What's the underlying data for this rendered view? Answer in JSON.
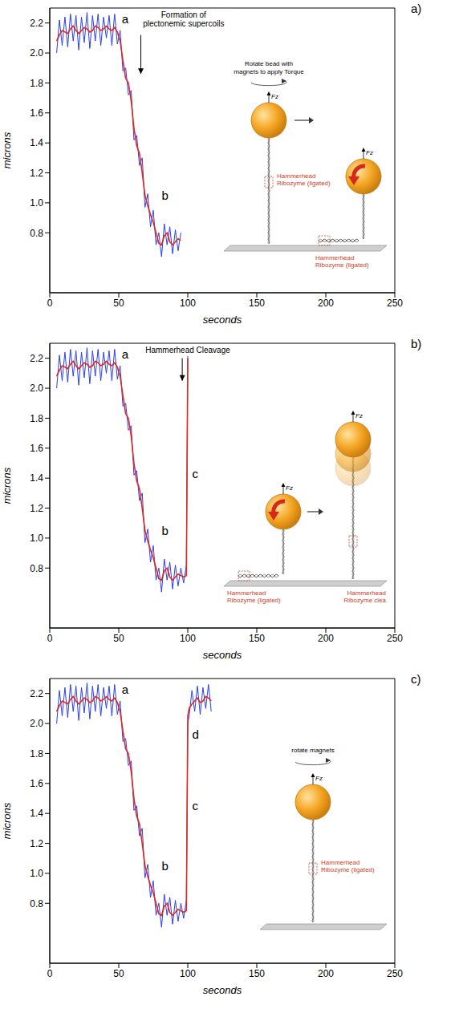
{
  "chart_data": [
    {
      "type": "line",
      "label": "a)",
      "x_label": "seconds",
      "y_label": "microns",
      "xlim": [
        0,
        250
      ],
      "xticks": [
        0,
        50,
        100,
        150,
        200,
        250
      ],
      "ylim": [
        0.4,
        2.3
      ],
      "yticks": [
        0.8,
        {
          "value": 1,
          "label": "1.0"
        },
        1.2,
        1.4,
        1.6,
        1.8,
        {
          "value": 2,
          "label": "2.0"
        },
        2.2
      ],
      "x": [
        5,
        7,
        9,
        11,
        13,
        15,
        17,
        19,
        21,
        23,
        25,
        27,
        29,
        31,
        33,
        35,
        37,
        39,
        41,
        43,
        45,
        47,
        49,
        51,
        53,
        55,
        57,
        59,
        61,
        63,
        65,
        67,
        69,
        71,
        73,
        75,
        77,
        79,
        81,
        83,
        85,
        87,
        89,
        91,
        93,
        95
      ],
      "series": [
        {
          "color": "#2a3ff0",
          "values": [
            2.0,
            2.22,
            2.05,
            2.24,
            2.04,
            2.26,
            2.08,
            2.25,
            2.02,
            2.24,
            2.07,
            2.27,
            2.03,
            2.25,
            2.08,
            2.26,
            2.05,
            2.24,
            2.1,
            2.25,
            2.05,
            2.26,
            2.06,
            2.15,
            1.88,
            1.9,
            1.72,
            1.75,
            1.42,
            1.45,
            1.25,
            1.3,
            0.97,
            1.06,
            0.84,
            0.95,
            0.72,
            0.8,
            0.64,
            0.86,
            0.72,
            0.84,
            0.66,
            0.82,
            0.68,
            0.8
          ]
        },
        {
          "color": "#e0281e",
          "values": [
            2.08,
            2.12,
            2.15,
            2.14,
            2.13,
            2.16,
            2.18,
            2.15,
            2.13,
            2.15,
            2.17,
            2.16,
            2.14,
            2.15,
            2.18,
            2.17,
            2.15,
            2.16,
            2.18,
            2.16,
            2.15,
            2.17,
            2.14,
            2.08,
            1.95,
            1.83,
            1.8,
            1.68,
            1.5,
            1.38,
            1.33,
            1.2,
            1.05,
            0.98,
            0.92,
            0.87,
            0.8,
            0.73,
            0.72,
            0.78,
            0.8,
            0.74,
            0.72,
            0.74,
            0.76,
            0.75
          ]
        }
      ],
      "annotations": [
        {
          "text": "a",
          "x": 51,
          "y": 2.2
        },
        {
          "text": "b",
          "x": 80,
          "y": 1.02
        },
        {
          "text": "Formation of plectonemic supercoils",
          "x": 97,
          "y": 2.295,
          "arrow": [
            [
              66,
              2.12
            ],
            [
              66,
              1.86
            ]
          ]
        }
      ],
      "inset": {
        "caption": "Rotate bead with magnets to apply Torque",
        "force_labels": [
          "Fz",
          "Fz"
        ],
        "ribozyme_labels": [
          "Hammerhead Ribozyme (ligated)",
          "Hammerhead Ribozyme (ligated)"
        ]
      }
    },
    {
      "type": "line",
      "label": "b)",
      "x_label": "seconds",
      "y_label": "microns",
      "xlim": [
        0,
        250
      ],
      "xticks": [
        0,
        50,
        100,
        150,
        200,
        250
      ],
      "ylim": [
        0.4,
        2.3
      ],
      "yticks": [
        0.8,
        {
          "value": 1,
          "label": "1.0"
        },
        1.2,
        1.4,
        1.6,
        1.8,
        {
          "value": 2,
          "label": "2.0"
        },
        2.2
      ],
      "x": [
        5,
        7,
        9,
        11,
        13,
        15,
        17,
        19,
        21,
        23,
        25,
        27,
        29,
        31,
        33,
        35,
        37,
        39,
        41,
        43,
        45,
        47,
        49,
        51,
        53,
        55,
        57,
        59,
        61,
        63,
        65,
        67,
        69,
        71,
        73,
        75,
        77,
        79,
        81,
        83,
        85,
        87,
        89,
        91,
        93,
        95,
        97,
        99,
        100
      ],
      "series": [
        {
          "color": "#2a3ff0",
          "values": [
            2.0,
            2.22,
            2.05,
            2.24,
            2.04,
            2.26,
            2.08,
            2.25,
            2.02,
            2.24,
            2.07,
            2.27,
            2.03,
            2.25,
            2.08,
            2.26,
            2.05,
            2.24,
            2.1,
            2.25,
            2.05,
            2.26,
            2.06,
            2.15,
            1.88,
            1.9,
            1.72,
            1.75,
            1.42,
            1.45,
            1.25,
            1.3,
            0.97,
            1.06,
            0.84,
            0.95,
            0.72,
            0.8,
            0.64,
            0.86,
            0.72,
            0.84,
            0.66,
            0.82,
            0.68,
            0.8,
            0.7,
            0.82,
            2.25
          ]
        },
        {
          "color": "#e0281e",
          "values": [
            2.08,
            2.12,
            2.15,
            2.14,
            2.13,
            2.16,
            2.18,
            2.15,
            2.13,
            2.15,
            2.17,
            2.16,
            2.14,
            2.15,
            2.18,
            2.17,
            2.15,
            2.16,
            2.18,
            2.16,
            2.15,
            2.17,
            2.14,
            2.08,
            1.95,
            1.83,
            1.8,
            1.68,
            1.5,
            1.38,
            1.33,
            1.2,
            1.05,
            0.98,
            0.92,
            0.87,
            0.8,
            0.73,
            0.72,
            0.78,
            0.8,
            0.74,
            0.72,
            0.74,
            0.76,
            0.75,
            0.74,
            0.75,
            2.2
          ]
        }
      ],
      "annotations": [
        {
          "text": "a",
          "x": 51,
          "y": 2.2
        },
        {
          "text": "b",
          "x": 80,
          "y": 1.02
        },
        {
          "text": "c",
          "x": 102,
          "y": 1.4
        },
        {
          "text": "Hammerhead Cleavage",
          "x": 100,
          "y": 2.295,
          "arrow": [
            [
              96,
              2.2
            ],
            [
              96,
              2.05
            ]
          ]
        }
      ],
      "inset": {
        "force_labels": [
          "Fz",
          "Fz"
        ],
        "ribozyme_labels": [
          "Hammerhead Ribozyme (ligated)",
          "Hammerhead Ribozyme clea"
        ]
      }
    },
    {
      "type": "line",
      "label": "c)",
      "x_label": "seconds",
      "y_label": "microns",
      "xlim": [
        0,
        250
      ],
      "xticks": [
        0,
        50,
        100,
        150,
        200,
        250
      ],
      "ylim": [
        0.4,
        2.3
      ],
      "yticks": [
        0.8,
        {
          "value": 1,
          "label": "1.0"
        },
        1.2,
        1.4,
        1.6,
        1.8,
        {
          "value": 2,
          "label": "2.0"
        },
        2.2
      ],
      "x": [
        5,
        7,
        9,
        11,
        13,
        15,
        17,
        19,
        21,
        23,
        25,
        27,
        29,
        31,
        33,
        35,
        37,
        39,
        41,
        43,
        45,
        47,
        49,
        51,
        53,
        55,
        57,
        59,
        61,
        63,
        65,
        67,
        69,
        71,
        73,
        75,
        77,
        79,
        81,
        83,
        85,
        87,
        89,
        91,
        93,
        95,
        97,
        99,
        100,
        101,
        103,
        105,
        107,
        109,
        111,
        113,
        115,
        117
      ],
      "series": [
        {
          "color": "#2a3ff0",
          "values": [
            2.0,
            2.22,
            2.05,
            2.24,
            2.04,
            2.26,
            2.08,
            2.25,
            2.02,
            2.24,
            2.07,
            2.27,
            2.03,
            2.25,
            2.08,
            2.26,
            2.05,
            2.24,
            2.1,
            2.25,
            2.05,
            2.26,
            2.06,
            2.15,
            1.88,
            1.9,
            1.72,
            1.75,
            1.42,
            1.45,
            1.25,
            1.3,
            0.97,
            1.06,
            0.84,
            0.95,
            0.72,
            0.8,
            0.64,
            0.86,
            0.72,
            0.84,
            0.66,
            0.82,
            0.68,
            0.8,
            0.7,
            0.82,
            2.0,
            2.05,
            2.22,
            2.08,
            2.25,
            2.06,
            2.24,
            2.1,
            2.26,
            2.08
          ]
        },
        {
          "color": "#e0281e",
          "values": [
            2.08,
            2.12,
            2.15,
            2.14,
            2.13,
            2.16,
            2.18,
            2.15,
            2.13,
            2.15,
            2.17,
            2.16,
            2.14,
            2.15,
            2.18,
            2.17,
            2.15,
            2.16,
            2.18,
            2.16,
            2.15,
            2.17,
            2.14,
            2.08,
            1.95,
            1.83,
            1.8,
            1.68,
            1.5,
            1.38,
            1.33,
            1.2,
            1.05,
            0.98,
            0.92,
            0.87,
            0.8,
            0.73,
            0.72,
            0.78,
            0.8,
            0.74,
            0.72,
            0.74,
            0.76,
            0.75,
            0.74,
            0.75,
            2.05,
            2.1,
            2.13,
            2.15,
            2.17,
            2.14,
            2.15,
            2.18,
            2.17,
            2.15
          ]
        }
      ],
      "annotations": [
        {
          "text": "a",
          "x": 51,
          "y": 2.2
        },
        {
          "text": "b",
          "x": 80,
          "y": 1.02
        },
        {
          "text": "c",
          "x": 102,
          "y": 1.42
        },
        {
          "text": "d",
          "x": 102,
          "y": 1.9
        }
      ],
      "inset": {
        "caption": "rotate magnets",
        "force_labels": [
          "Fz"
        ],
        "ribozyme_labels": [
          "Hammerhead Ribozyme (ligated)"
        ]
      }
    }
  ]
}
